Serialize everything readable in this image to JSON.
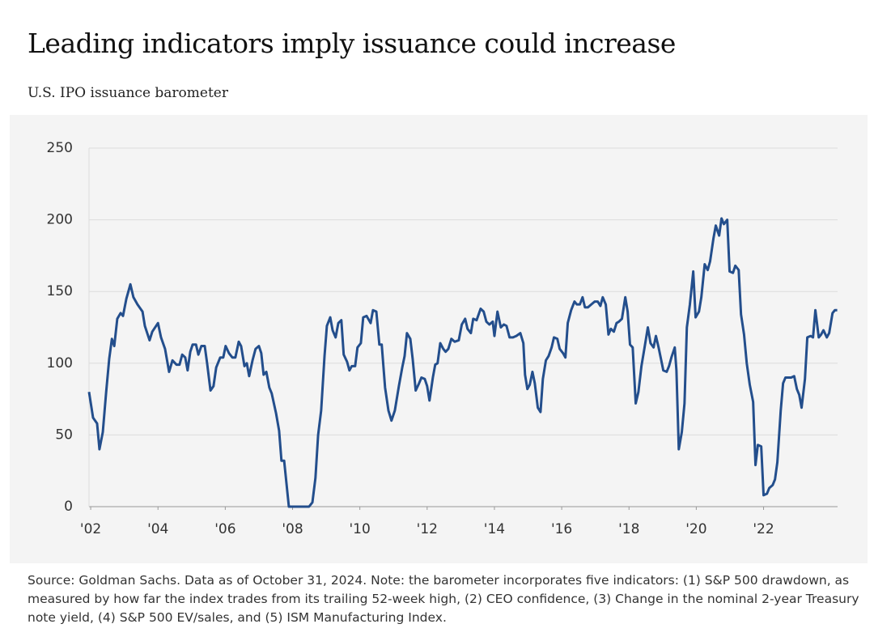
{
  "chart_data": {
    "type": "line",
    "title": "Leading indicators imply issuance could increase",
    "subtitle": "U.S. IPO issuance barometer",
    "note": "Source: Goldman Sachs. Data as of October 31, 2024. Note: the barometer incorporates five indicators: (1) S&P 500 drawdown, as measured by how far the index trades from its trailing 52-week high, (2) CEO confidence, (3) Change in the nominal 2-year Treasury note yield, (4) S&P 500 EV/sales, and (5) ISM Manufacturing Index.",
    "xlim": [
      2001.95,
      2024.2
    ],
    "ylim": [
      0,
      250
    ],
    "yticks": [
      0,
      50,
      100,
      150,
      200,
      250
    ],
    "xticks": [
      {
        "value": 2002,
        "label": "'02"
      },
      {
        "value": 2004,
        "label": "'04"
      },
      {
        "value": 2006,
        "label": "'06"
      },
      {
        "value": 2008,
        "label": "'08"
      },
      {
        "value": 2010,
        "label": "'10"
      },
      {
        "value": 2012,
        "label": "'12"
      },
      {
        "value": 2014,
        "label": "'14"
      },
      {
        "value": 2016,
        "label": "'16"
      },
      {
        "value": 2018,
        "label": "'18"
      },
      {
        "value": 2020,
        "label": "'20"
      },
      {
        "value": 2022,
        "label": "'22"
      }
    ],
    "grid": true,
    "x": [
      2001.95,
      2002.07,
      2002.19,
      2002.26,
      2002.36,
      2002.46,
      2002.55,
      2002.63,
      2002.7,
      2002.79,
      2002.89,
      2002.96,
      2003.06,
      2003.18,
      2003.27,
      2003.39,
      2003.54,
      2003.61,
      2003.75,
      2003.83,
      2004.0,
      2004.09,
      2004.21,
      2004.33,
      2004.43,
      2004.55,
      2004.64,
      2004.72,
      2004.81,
      2004.88,
      2004.96,
      2005.03,
      2005.13,
      2005.2,
      2005.29,
      2005.39,
      2005.46,
      2005.56,
      2005.65,
      2005.73,
      2005.85,
      2005.94,
      2006.01,
      2006.11,
      2006.21,
      2006.3,
      2006.4,
      2006.47,
      2006.57,
      2006.64,
      2006.71,
      2006.81,
      2006.9,
      2007.0,
      2007.07,
      2007.14,
      2007.22,
      2007.31,
      2007.38,
      2007.51,
      2007.6,
      2007.67,
      2007.75,
      2007.89,
      2008.25,
      2008.49,
      2008.59,
      2008.68,
      2008.76,
      2008.85,
      2008.95,
      2009.02,
      2009.12,
      2009.19,
      2009.28,
      2009.36,
      2009.45,
      2009.52,
      2009.62,
      2009.69,
      2009.76,
      2009.86,
      2009.93,
      2010.03,
      2010.1,
      2010.2,
      2010.32,
      2010.39,
      2010.49,
      2010.58,
      2010.65,
      2010.75,
      2010.85,
      2010.94,
      2011.04,
      2011.16,
      2011.26,
      2011.33,
      2011.4,
      2011.5,
      2011.57,
      2011.66,
      2011.76,
      2011.83,
      2011.93,
      2012.0,
      2012.07,
      2012.17,
      2012.24,
      2012.31,
      2012.39,
      2012.48,
      2012.55,
      2012.63,
      2012.72,
      2012.82,
      2012.94,
      2013.03,
      2013.13,
      2013.2,
      2013.3,
      2013.37,
      2013.47,
      2013.59,
      2013.68,
      2013.76,
      2013.85,
      2013.95,
      2014.0,
      2014.09,
      2014.19,
      2014.28,
      2014.36,
      2014.45,
      2014.55,
      2014.65,
      2014.77,
      2014.86,
      2014.91,
      2014.98,
      2015.05,
      2015.13,
      2015.2,
      2015.29,
      2015.37,
      2015.44,
      2015.53,
      2015.61,
      2015.7,
      2015.77,
      2015.87,
      2015.94,
      2016.04,
      2016.11,
      2016.18,
      2016.28,
      2016.38,
      2016.45,
      2016.54,
      2016.62,
      2016.69,
      2016.78,
      2016.88,
      2016.98,
      2017.07,
      2017.15,
      2017.22,
      2017.31,
      2017.39,
      2017.46,
      2017.55,
      2017.63,
      2017.7,
      2017.79,
      2017.89,
      2017.96,
      2018.03,
      2018.11,
      2018.2,
      2018.28,
      2018.37,
      2018.47,
      2018.56,
      2018.64,
      2018.73,
      2018.8,
      2018.88,
      2018.95,
      2019.02,
      2019.12,
      2019.19,
      2019.26,
      2019.36,
      2019.41,
      2019.48,
      2019.57,
      2019.65,
      2019.72,
      2019.81,
      2019.91,
      2019.98,
      2020.08,
      2020.15,
      2020.25,
      2020.34,
      2020.41,
      2020.51,
      2020.58,
      2020.68,
      2020.75,
      2020.82,
      2020.92,
      2020.99,
      2021.09,
      2021.16,
      2021.26,
      2021.33,
      2021.42,
      2021.5,
      2021.59,
      2021.69,
      2021.76,
      2021.83,
      2021.93,
      2022.0,
      2022.1,
      2022.17,
      2022.27,
      2022.34,
      2022.41,
      2022.51,
      2022.58,
      2022.65,
      2022.75,
      2022.82,
      2022.91,
      2022.99,
      2023.06,
      2023.13,
      2023.23,
      2023.3,
      2023.4,
      2023.47,
      2023.54,
      2023.64,
      2023.71,
      2023.78,
      2023.88,
      2023.95,
      2024.05,
      2024.12,
      2024.19
    ],
    "series": [
      {
        "name": "U.S. IPO issuance barometer",
        "color": "#234e8c",
        "values": [
          80,
          62,
          58,
          40,
          52,
          80,
          103,
          117,
          112,
          131,
          135,
          133,
          145,
          155,
          146,
          141,
          136,
          126,
          116,
          122,
          128,
          118,
          110,
          94,
          102,
          99,
          99,
          106,
          104,
          95,
          108,
          113,
          113,
          106,
          112,
          112,
          100,
          81,
          84,
          97,
          104,
          104,
          112,
          107,
          104,
          104,
          115,
          112,
          98,
          100,
          91,
          102,
          110,
          112,
          107,
          92,
          94,
          83,
          79,
          65,
          53,
          32,
          32,
          0,
          0,
          0,
          3,
          20,
          50,
          67,
          105,
          126,
          132,
          123,
          118,
          128,
          130,
          106,
          101,
          95,
          98,
          98,
          111,
          114,
          132,
          133,
          128,
          137,
          136,
          113,
          113,
          83,
          67,
          60,
          67,
          84,
          97,
          105,
          121,
          117,
          103,
          81,
          86,
          90,
          89,
          84,
          74,
          90,
          99,
          100,
          114,
          110,
          108,
          110,
          117,
          115,
          116,
          127,
          131,
          124,
          121,
          131,
          130,
          138,
          136,
          129,
          127,
          129,
          119,
          136,
          125,
          127,
          126,
          118,
          118,
          119,
          121,
          114,
          92,
          82,
          85,
          94,
          86,
          69,
          66,
          89,
          102,
          105,
          111,
          118,
          117,
          110,
          107,
          104,
          128,
          137,
          143,
          141,
          141,
          146,
          139,
          139,
          141,
          143,
          143,
          140,
          146,
          141,
          120,
          124,
          122,
          128,
          129,
          131,
          146,
          136,
          113,
          111,
          72,
          80,
          98,
          112,
          125,
          114,
          111,
          119,
          111,
          103,
          95,
          94,
          98,
          104,
          111,
          95,
          40,
          52,
          72,
          125,
          141,
          164,
          132,
          136,
          146,
          169,
          165,
          171,
          187,
          196,
          189,
          201,
          197,
          200,
          164,
          163,
          168,
          165,
          134,
          120,
          100,
          85,
          73,
          29,
          43,
          42,
          8,
          9,
          13,
          15,
          19,
          31,
          67,
          86,
          90,
          90,
          90,
          91,
          82,
          78,
          69,
          89,
          118,
          119,
          118,
          137,
          118,
          120,
          123,
          118,
          121,
          135,
          137,
          137
        ]
      }
    ]
  }
}
